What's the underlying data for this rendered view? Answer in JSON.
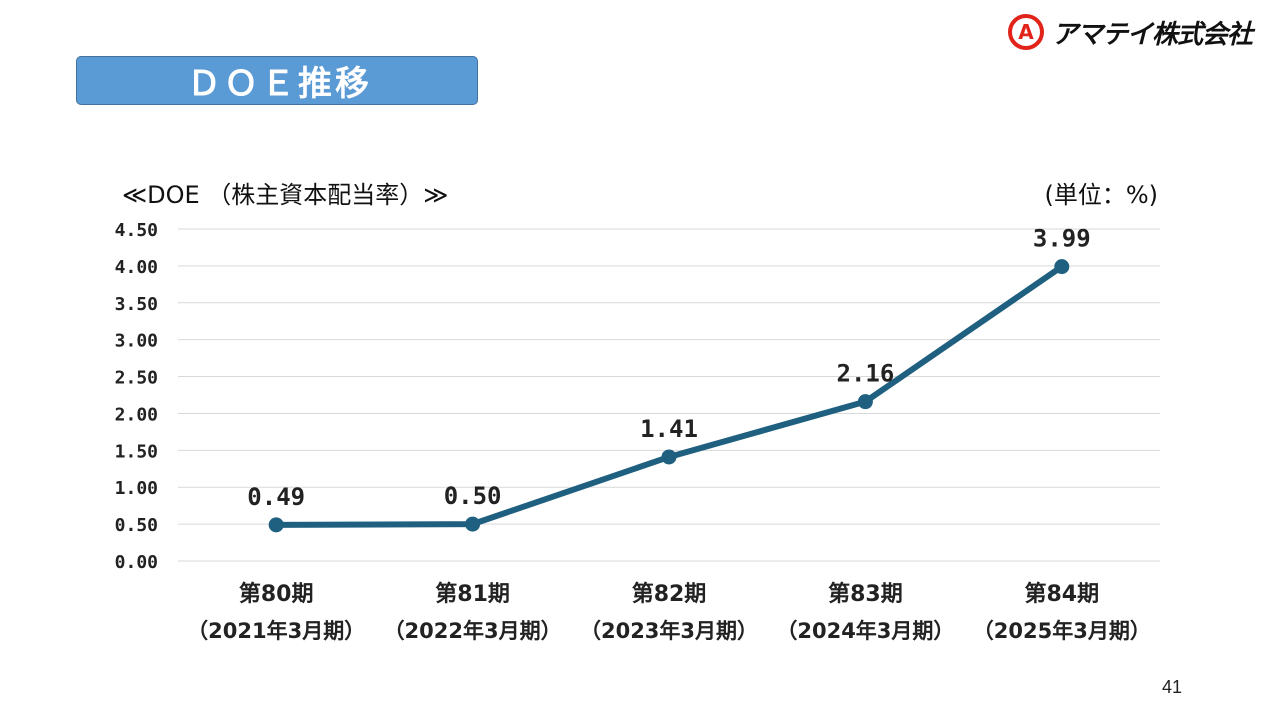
{
  "header": {
    "title": "ＤＯＥ推移",
    "logo_mark": "A",
    "logo_text": "アマテイ株式会社"
  },
  "page_number": "41",
  "colors": {
    "title_bg": "#5b9bd5",
    "line": "#1f5f7f",
    "gridline": "#d9d9d9",
    "logo_red": "#e2231a"
  },
  "chart_data": {
    "type": "line",
    "title": "≪DOE （株主資本配当率）≫",
    "unit_label": "(単位：%)",
    "categories": [
      [
        "第80期",
        "（2021年3月期）"
      ],
      [
        "第81期",
        "（2022年3月期）"
      ],
      [
        "第82期",
        "（2023年3月期）"
      ],
      [
        "第83期",
        "（2024年3月期）"
      ],
      [
        "第84期",
        "（2025年3月期）"
      ]
    ],
    "series": [
      {
        "values": [
          0.49,
          0.5,
          1.41,
          2.16,
          3.99
        ]
      }
    ],
    "data_labels": [
      "0.49",
      "0.50",
      "1.41",
      "2.16",
      "3.99"
    ],
    "y_ticks": [
      "0.00",
      "0.50",
      "1.00",
      "1.50",
      "2.00",
      "2.50",
      "3.00",
      "3.50",
      "4.00",
      "4.50"
    ],
    "ylim": [
      0,
      4.5
    ],
    "grid": true,
    "legend": "none"
  }
}
